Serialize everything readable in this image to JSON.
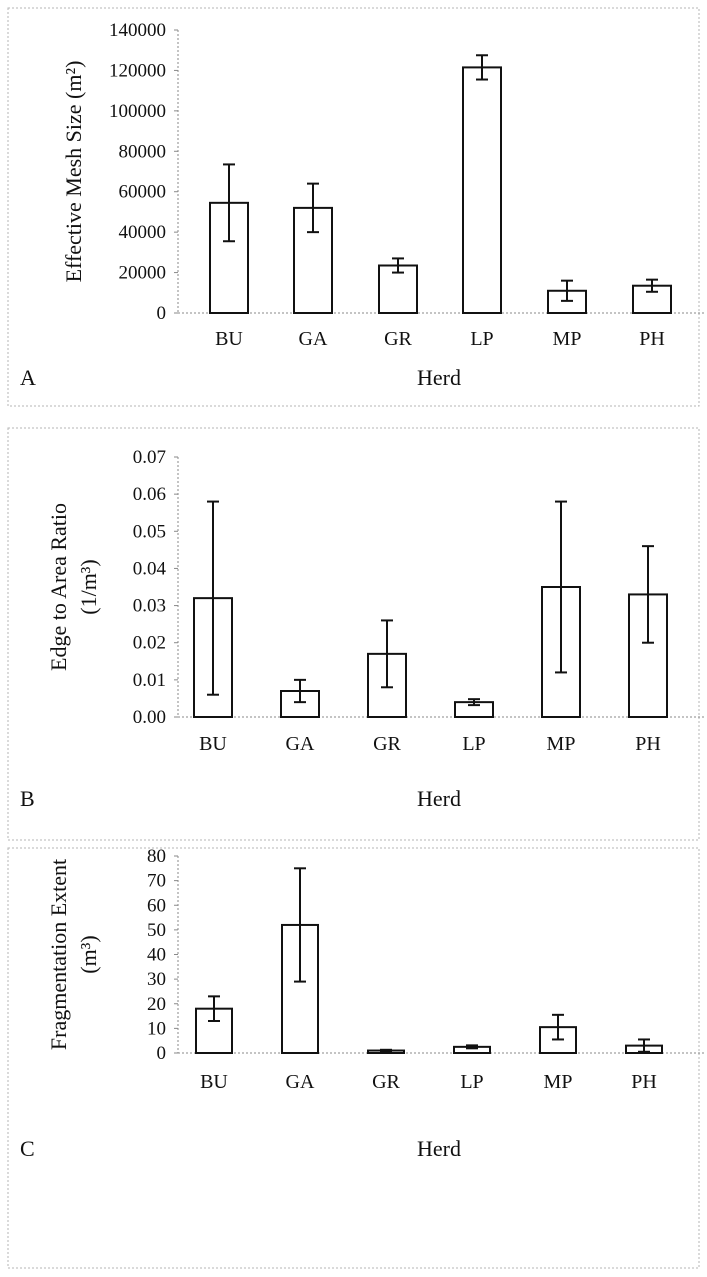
{
  "chart_data": [
    {
      "type": "bar",
      "panel_label": "A",
      "categories": [
        "BU",
        "GA",
        "GR",
        "LP",
        "MP",
        "PH"
      ],
      "values": [
        54500,
        52000,
        23500,
        121500,
        11000,
        13500
      ],
      "errors": [
        19000,
        12000,
        3500,
        6000,
        5000,
        3000
      ],
      "xlabel": "Herd",
      "ylabel": "Effective Mesh Size (m²)",
      "ylim": [
        0,
        140000
      ],
      "yticks": [
        "0",
        "20000",
        "40000",
        "60000",
        "80000",
        "100000",
        "120000",
        "140000"
      ],
      "grid": false
    },
    {
      "type": "bar",
      "panel_label": "B",
      "categories": [
        "BU",
        "GA",
        "GR",
        "LP",
        "MP",
        "PH"
      ],
      "values": [
        0.032,
        0.007,
        0.017,
        0.004,
        0.035,
        0.033
      ],
      "errors": [
        0.026,
        0.003,
        0.009,
        0.0008,
        0.023,
        0.013
      ],
      "xlabel": "Herd",
      "ylabel": [
        "Edge to Area Ratio",
        "(1/m³)"
      ],
      "ylim": [
        0,
        0.07
      ],
      "yticks": [
        "0.00",
        "0.01",
        "0.02",
        "0.03",
        "0.04",
        "0.05",
        "0.06",
        "0.07"
      ],
      "grid": false
    },
    {
      "type": "bar",
      "panel_label": "C",
      "categories": [
        "BU",
        "GA",
        "GR",
        "LP",
        "MP",
        "PH"
      ],
      "values": [
        18,
        52,
        1,
        2.5,
        10.5,
        3
      ],
      "errors": [
        5,
        23,
        0.3,
        0.6,
        5,
        2.5
      ],
      "xlabel": "Herd",
      "ylabel": [
        "Fragmentation Extent",
        "(m³)"
      ],
      "ylim": [
        0,
        80
      ],
      "yticks": [
        "0",
        "10",
        "20",
        "30",
        "40",
        "50",
        "60",
        "70",
        "80"
      ],
      "grid": false
    }
  ]
}
